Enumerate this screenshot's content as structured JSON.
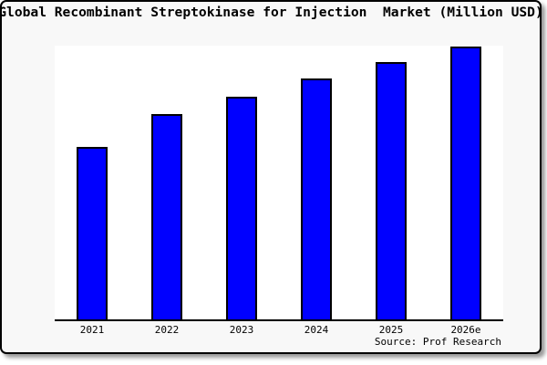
{
  "frame": {
    "card_background": "#f8f8f8",
    "border_color": "#000000",
    "shadow_color": "#9a9a9a",
    "plot_background": "#ffffff"
  },
  "chart": {
    "title": "Global Recombinant Streptokinase for Injection  Market (Million USD)",
    "source": "Source: Prof Research",
    "bar_color": "#0000ff",
    "bar_border_color": "#000000"
  },
  "chart_data": {
    "type": "bar",
    "categories": [
      "2021",
      "2022",
      "2023",
      "2024",
      "2025",
      "2026e"
    ],
    "values": [
      63,
      75,
      81.5,
      88,
      94,
      99.5
    ],
    "title": "Global Recombinant Streptokinase for Injection  Market (Million USD)",
    "xlabel": "",
    "ylabel": "",
    "ylim": [
      0,
      100
    ],
    "value_note": "No numeric y-axis shown in source image; values are relative bar heights as percent of axis maximum",
    "legend": "none",
    "grid": false,
    "annotations": [
      "Source: Prof Research"
    ]
  }
}
